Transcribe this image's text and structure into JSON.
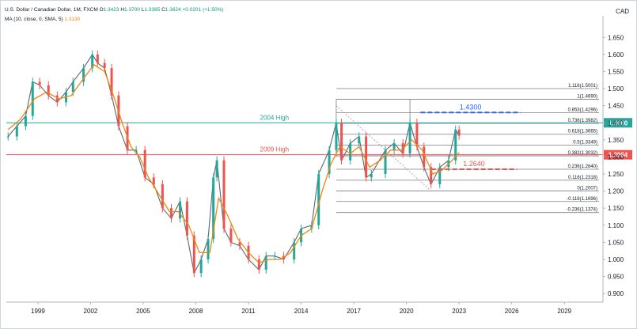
{
  "header": {
    "symbol": "U.S. Dollar / Canadian Dollar, 1M, FXCM",
    "o_label": "O",
    "o_value": "1.3423",
    "h_label": "H",
    "h_value": "1.3700",
    "l_label": "L",
    "l_value": "1.3385",
    "c_label": "C",
    "c_value": "1.3624",
    "change": "+0.0201 (+1.50%)",
    "ma_label": "MA (10, close, 0, SMA, 5)",
    "ma_value": "1.3130",
    "currency": "CAD"
  },
  "colors": {
    "up": "#26a69a",
    "down": "#ef5350",
    "ma": "#f0870f",
    "teal_line": "#26a69a",
    "red_line": "#ef5350",
    "fib": "#787b86",
    "blue_target": "#2962ff",
    "red_target": "#ef5350"
  },
  "chart_data": {
    "type": "line",
    "title": "U.S. Dollar / Canadian Dollar, 1M, FXCM",
    "x_axis": {
      "ticks": [
        "1999",
        "2002",
        "2005",
        "2008",
        "2011",
        "2014",
        "2017",
        "2020",
        "2023",
        "2026",
        "2029"
      ],
      "range": [
        1997.2,
        2031.2
      ]
    },
    "y_axis": {
      "ticks": [
        "0.900",
        "0.950",
        "1.000",
        "1.050",
        "1.100",
        "1.150",
        "1.200",
        "1.250",
        "1.300",
        "1.350",
        "1.400",
        "1.450",
        "1.500",
        "1.550",
        "1.600",
        "1.650"
      ],
      "range": [
        0.875,
        1.69
      ]
    },
    "series": [
      {
        "name": "",
        "kind": "price",
        "points": [
          [
            1997.3,
            1.36
          ],
          [
            1997.8,
            1.39
          ],
          [
            1998.3,
            1.42
          ],
          [
            1998.7,
            1.52
          ],
          [
            1999.1,
            1.51
          ],
          [
            1999.6,
            1.48
          ],
          [
            2000.1,
            1.46
          ],
          [
            2000.6,
            1.49
          ],
          [
            2001.0,
            1.52
          ],
          [
            2001.6,
            1.56
          ],
          [
            2002.1,
            1.6
          ],
          [
            2002.4,
            1.575
          ],
          [
            2002.8,
            1.56
          ],
          [
            2003.2,
            1.48
          ],
          [
            2003.6,
            1.39
          ],
          [
            2004.1,
            1.32
          ],
          [
            2004.6,
            1.32
          ],
          [
            2005.1,
            1.24
          ],
          [
            2005.6,
            1.22
          ],
          [
            2006.1,
            1.15
          ],
          [
            2006.6,
            1.12
          ],
          [
            2007.1,
            1.17
          ],
          [
            2007.5,
            1.07
          ],
          [
            2007.9,
            0.96
          ],
          [
            2008.3,
            1.0
          ],
          [
            2008.7,
            1.06
          ],
          [
            2009.0,
            1.24
          ],
          [
            2009.2,
            1.29
          ],
          [
            2009.6,
            1.09
          ],
          [
            2010.0,
            1.05
          ],
          [
            2010.5,
            1.04
          ],
          [
            2011.0,
            1.0
          ],
          [
            2011.6,
            0.97
          ],
          [
            2012.0,
            1.01
          ],
          [
            2012.5,
            1.01
          ],
          [
            2013.0,
            1.0
          ],
          [
            2013.6,
            1.05
          ],
          [
            2014.0,
            1.09
          ],
          [
            2014.6,
            1.1
          ],
          [
            2015.0,
            1.25
          ],
          [
            2015.6,
            1.32
          ],
          [
            2016.0,
            1.4
          ],
          [
            2016.3,
            1.29
          ],
          [
            2016.8,
            1.34
          ],
          [
            2017.3,
            1.36
          ],
          [
            2017.7,
            1.24
          ],
          [
            2018.0,
            1.25
          ],
          [
            2018.8,
            1.32
          ],
          [
            2019.3,
            1.34
          ],
          [
            2019.8,
            1.31
          ],
          [
            2020.2,
            1.4
          ],
          [
            2020.6,
            1.33
          ],
          [
            2021.0,
            1.27
          ],
          [
            2021.4,
            1.22
          ],
          [
            2021.9,
            1.27
          ],
          [
            2022.4,
            1.29
          ],
          [
            2022.8,
            1.38
          ],
          [
            2023.0,
            1.3624
          ]
        ]
      },
      {
        "name": "",
        "kind": "ma",
        "points": [
          [
            1997.3,
            1.38
          ],
          [
            1998.0,
            1.41
          ],
          [
            1998.8,
            1.47
          ],
          [
            1999.5,
            1.49
          ],
          [
            2000.2,
            1.47
          ],
          [
            2000.9,
            1.48
          ],
          [
            2001.6,
            1.53
          ],
          [
            2002.2,
            1.57
          ],
          [
            2002.8,
            1.55
          ],
          [
            2003.3,
            1.48
          ],
          [
            2003.8,
            1.4
          ],
          [
            2004.3,
            1.33
          ],
          [
            2004.8,
            1.3
          ],
          [
            2005.3,
            1.24
          ],
          [
            2005.9,
            1.19
          ],
          [
            2006.5,
            1.14
          ],
          [
            2007.0,
            1.14
          ],
          [
            2007.6,
            1.1
          ],
          [
            2008.2,
            1.02
          ],
          [
            2008.8,
            1.02
          ],
          [
            2009.3,
            1.18
          ],
          [
            2009.8,
            1.13
          ],
          [
            2010.4,
            1.06
          ],
          [
            2011.0,
            1.02
          ],
          [
            2011.6,
            0.99
          ],
          [
            2012.2,
            1.0
          ],
          [
            2012.8,
            1.0
          ],
          [
            2013.4,
            1.02
          ],
          [
            2014.0,
            1.07
          ],
          [
            2014.6,
            1.09
          ],
          [
            2015.2,
            1.2
          ],
          [
            2015.7,
            1.28
          ],
          [
            2016.2,
            1.33
          ],
          [
            2016.8,
            1.31
          ],
          [
            2017.3,
            1.33
          ],
          [
            2017.9,
            1.27
          ],
          [
            2018.5,
            1.29
          ],
          [
            2019.1,
            1.32
          ],
          [
            2019.7,
            1.32
          ],
          [
            2020.3,
            1.35
          ],
          [
            2020.9,
            1.32
          ],
          [
            2021.5,
            1.25
          ],
          [
            2022.0,
            1.26
          ],
          [
            2022.6,
            1.29
          ],
          [
            2023.0,
            1.313
          ]
        ]
      }
    ],
    "horizontal_lines": [
      {
        "label": "2004 High",
        "value": 1.4,
        "price_tag": "1.4000",
        "color": "teal"
      },
      {
        "label": "2009 High",
        "value": 1.3064,
        "price_tag": "1.3064",
        "color": "red"
      }
    ],
    "fibonacci": [
      {
        "label": "1.116(1.5001)",
        "value": 1.5001
      },
      {
        "label": "1(1.4690)",
        "value": 1.469
      },
      {
        "label": "0.853(1.4296)",
        "value": 1.4296
      },
      {
        "label": "0.736(1.3982)",
        "value": 1.3982
      },
      {
        "label": "0.618(1.3665)",
        "value": 1.3665
      },
      {
        "label": "0.5(1.3349)",
        "value": 1.3349
      },
      {
        "label": "0.382(1.3032)",
        "value": 1.3032
      },
      {
        "label": "0.236(1.2640)",
        "value": 1.264
      },
      {
        "label": "0.116(1.2318)",
        "value": 1.2318
      },
      {
        "label": "0(1.2007)",
        "value": 1.2007
      },
      {
        "label": "-0.116(1.1696)",
        "value": 1.1696
      },
      {
        "label": "-0.236(1.1374)",
        "value": 1.1374
      }
    ],
    "targets": [
      {
        "label": "1.4300",
        "value": 1.43,
        "color": "blue"
      },
      {
        "label": "1.2640",
        "value": 1.264,
        "color": "red"
      }
    ],
    "grid": false
  }
}
